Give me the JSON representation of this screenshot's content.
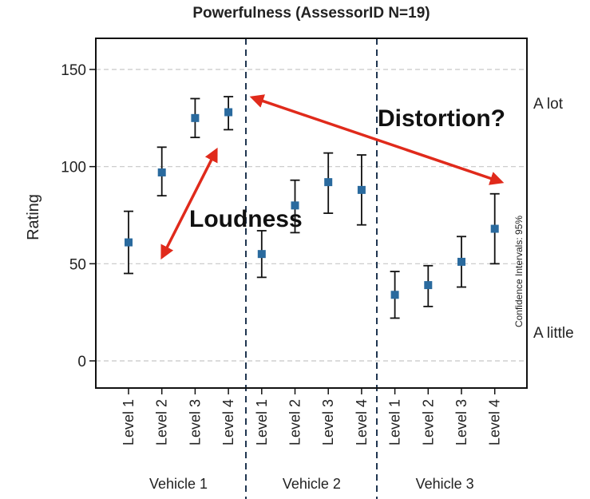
{
  "chart_data": {
    "type": "scatter",
    "title": "Powerfulness (AssessorID N=19)",
    "ylabel": "Rating",
    "xlabel": "",
    "ylim": [
      -12,
      162
    ],
    "yticks": [
      0,
      50,
      100,
      150
    ],
    "grid": true,
    "groups": [
      "Vehicle 1",
      "Vehicle 2",
      "Vehicle 3"
    ],
    "categories": [
      "Level 1",
      "Level 2",
      "Level 3",
      "Level 4"
    ],
    "series": [
      {
        "name": "Vehicle 1",
        "points": [
          {
            "label": "Level 1",
            "mean": 61,
            "low": 45,
            "high": 77
          },
          {
            "label": "Level 2",
            "mean": 97,
            "low": 85,
            "high": 110
          },
          {
            "label": "Level 3",
            "mean": 125,
            "low": 115,
            "high": 135
          },
          {
            "label": "Level 4",
            "mean": 128,
            "low": 119,
            "high": 136
          }
        ]
      },
      {
        "name": "Vehicle 2",
        "points": [
          {
            "label": "Level 1",
            "mean": 55,
            "low": 43,
            "high": 67
          },
          {
            "label": "Level 2",
            "mean": 80,
            "low": 66,
            "high": 93
          },
          {
            "label": "Level 3",
            "mean": 92,
            "low": 76,
            "high": 107
          },
          {
            "label": "Level 4",
            "mean": 88,
            "low": 70,
            "high": 106
          }
        ]
      },
      {
        "name": "Vehicle 3",
        "points": [
          {
            "label": "Level 1",
            "mean": 34,
            "low": 22,
            "high": 46
          },
          {
            "label": "Level 2",
            "mean": 39,
            "low": 28,
            "high": 49
          },
          {
            "label": "Level 3",
            "mean": 51,
            "low": 38,
            "high": 64
          },
          {
            "label": "Level 4",
            "mean": 68,
            "low": 50,
            "high": 86
          }
        ]
      }
    ],
    "right_labels": {
      "top": "A lot",
      "bottom": "A little"
    },
    "confidence_note": "Confidence Intervals: 95%",
    "annotations": {
      "loudness": "Loudness",
      "distortion": "Distortion?"
    },
    "colors": {
      "marker": "#2a6a9e",
      "errorbar": "#111111",
      "arrow": "#e02a1b",
      "grid": "#c8c8c8",
      "axis": "#111111"
    }
  }
}
